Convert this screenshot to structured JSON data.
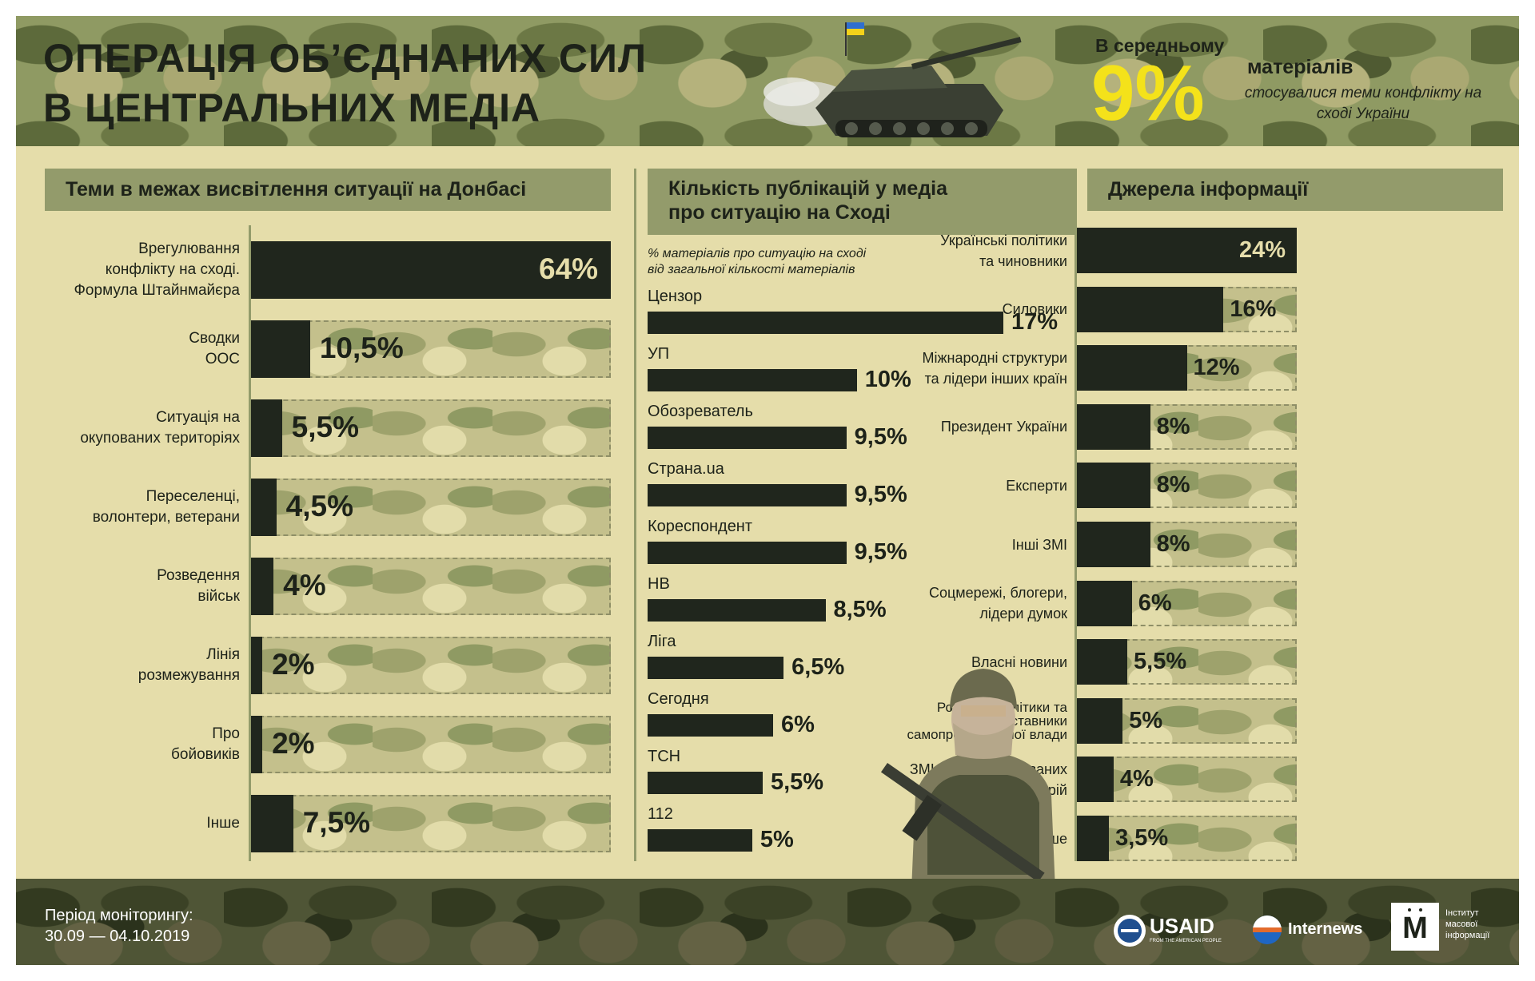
{
  "header": {
    "title_line1": "ОПЕРАЦІЯ ОБ’ЄДНАНИХ СИЛ",
    "title_line2": "В ЦЕНТРАЛЬНИХ МЕДІА",
    "average": {
      "prefix": "В середньому",
      "value": "9%",
      "suffix": "матеріалів",
      "note": "стосувалися теми конфлікту на сході України"
    }
  },
  "colors": {
    "bar": "#20261d",
    "accent": "#f4e21a",
    "panel": "#939b6b",
    "background": "#e5ddaa"
  },
  "chart_data": [
    {
      "type": "bar",
      "orientation": "horizontal",
      "title": "Теми в межах висвітлення ситуації на Донбасі",
      "categories": [
        "Врегулювання конфлікту на сході. Формула Штайнмайєра",
        "Сводки ООС",
        "Ситуація на окупованих територіях",
        "Переселенці, волонтери, ветерани",
        "Розведення військ",
        "Лінія розмежування",
        "Про бойовиків",
        "Інше"
      ],
      "label_lines": [
        [
          "Врегулювання",
          "конфлікту на сході.",
          "Формула Штайнмайєра"
        ],
        [
          "Сводки",
          "ООС"
        ],
        [
          "Ситуація на",
          "окупованих територіях"
        ],
        [
          "Переселенці,",
          "волонтери, ветерани"
        ],
        [
          "Розведення",
          "військ"
        ],
        [
          "Лінія",
          "розмежування"
        ],
        [
          "Про",
          "бойовиків"
        ],
        [
          "Інше"
        ]
      ],
      "values": [
        64,
        10.5,
        5.5,
        4.5,
        4,
        2,
        2,
        7.5
      ],
      "value_labels": [
        "64%",
        "10,5%",
        "5,5%",
        "4,5%",
        "4%",
        "2%",
        "2%",
        "7,5%"
      ],
      "xlim": [
        0,
        64
      ]
    },
    {
      "type": "bar",
      "orientation": "horizontal",
      "title": "Кількість публікацій у медіа про ситуацію на Сході",
      "title_lines": [
        "Кількість публікацій у медіа",
        "про ситуацію на Сході"
      ],
      "subtitle": "% матеріалів про ситуацію на сході від загальної кількості матеріалів",
      "subtitle_lines": [
        "% матеріалів про ситуацію на сході",
        "від загальної кількості матеріалів"
      ],
      "categories": [
        "Цензор",
        "УП",
        "Обозреватель",
        "Страна.ua",
        "Кореспондент",
        "НВ",
        "Ліга",
        "Сегодня",
        "ТСН",
        "112"
      ],
      "values": [
        17,
        10,
        9.5,
        9.5,
        9.5,
        8.5,
        6.5,
        6,
        5.5,
        5
      ],
      "value_labels": [
        "17%",
        "10%",
        "9,5%",
        "9,5%",
        "9,5%",
        "8,5%",
        "6,5%",
        "6%",
        "5,5%",
        "5%"
      ],
      "xlim": [
        0,
        17
      ]
    },
    {
      "type": "bar",
      "orientation": "horizontal",
      "title": "Джерела інформації",
      "categories": [
        "Українські політики та чиновники",
        "Силовики",
        "Міжнародні структури та лідери інших країн",
        "Президент України",
        "Експерти",
        "Інші ЗМІ",
        "Соцмережі, блогери, лідери думок",
        "Власні новини",
        "Російські політики та представники самопроголошеної влади",
        "ЗМІ росії та окупованих територій",
        "Інше"
      ],
      "label_lines": [
        [
          "Українські політики",
          "та чиновники"
        ],
        [
          "Силовики"
        ],
        [
          "Міжнародні структури",
          "та лідери інших країн"
        ],
        [
          "Президент України"
        ],
        [
          "Експерти"
        ],
        [
          "Інші ЗМІ"
        ],
        [
          "Соцмережі, блогери,",
          "лідери думок"
        ],
        [
          "Власні новини"
        ],
        [
          "Російські політики та",
          "представники",
          "самопроголошеної влади"
        ],
        [
          "ЗМІ росії та окупованих",
          "територій"
        ],
        [
          "Інше"
        ]
      ],
      "values": [
        24,
        16,
        12,
        8,
        8,
        8,
        6,
        5.5,
        5,
        4,
        3.5
      ],
      "value_labels": [
        "24%",
        "16%",
        "12%",
        "8%",
        "8%",
        "8%",
        "6%",
        "5,5%",
        "5%",
        "4%",
        "3,5%"
      ],
      "xlim": [
        0,
        24
      ]
    }
  ],
  "footer": {
    "period_label": "Період моніторингу:",
    "period_dates": "30.09 — 04.10.2019",
    "logos": {
      "usaid": "USAID",
      "usaid_tagline": "FROM THE AMERICAN PEOPLE",
      "internews": "Internews",
      "imi_mark": "М",
      "imi_lines": [
        "Інститут",
        "масової",
        "інформації"
      ]
    }
  }
}
